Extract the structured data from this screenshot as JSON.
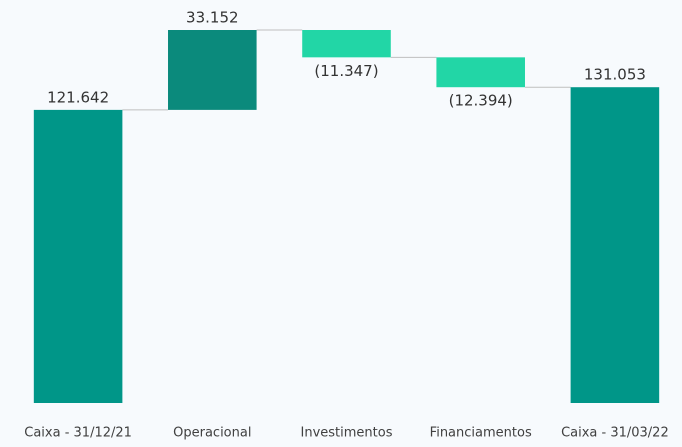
{
  "chart_data": {
    "type": "waterfall",
    "categories": [
      "Caixa - 31/12/21",
      "Operacional",
      "Investimentos",
      "Financiamentos",
      "Caixa - 31/03/22"
    ],
    "values": [
      121642,
      33152,
      -11347,
      -12394,
      131053
    ],
    "value_labels": [
      "121.642",
      "33.152",
      "(11.347)",
      "(12.394)",
      "131.053"
    ],
    "colors": [
      "#009688",
      "#0b8a7c",
      "#22d6a6",
      "#22d6a6",
      "#009688"
    ]
  }
}
